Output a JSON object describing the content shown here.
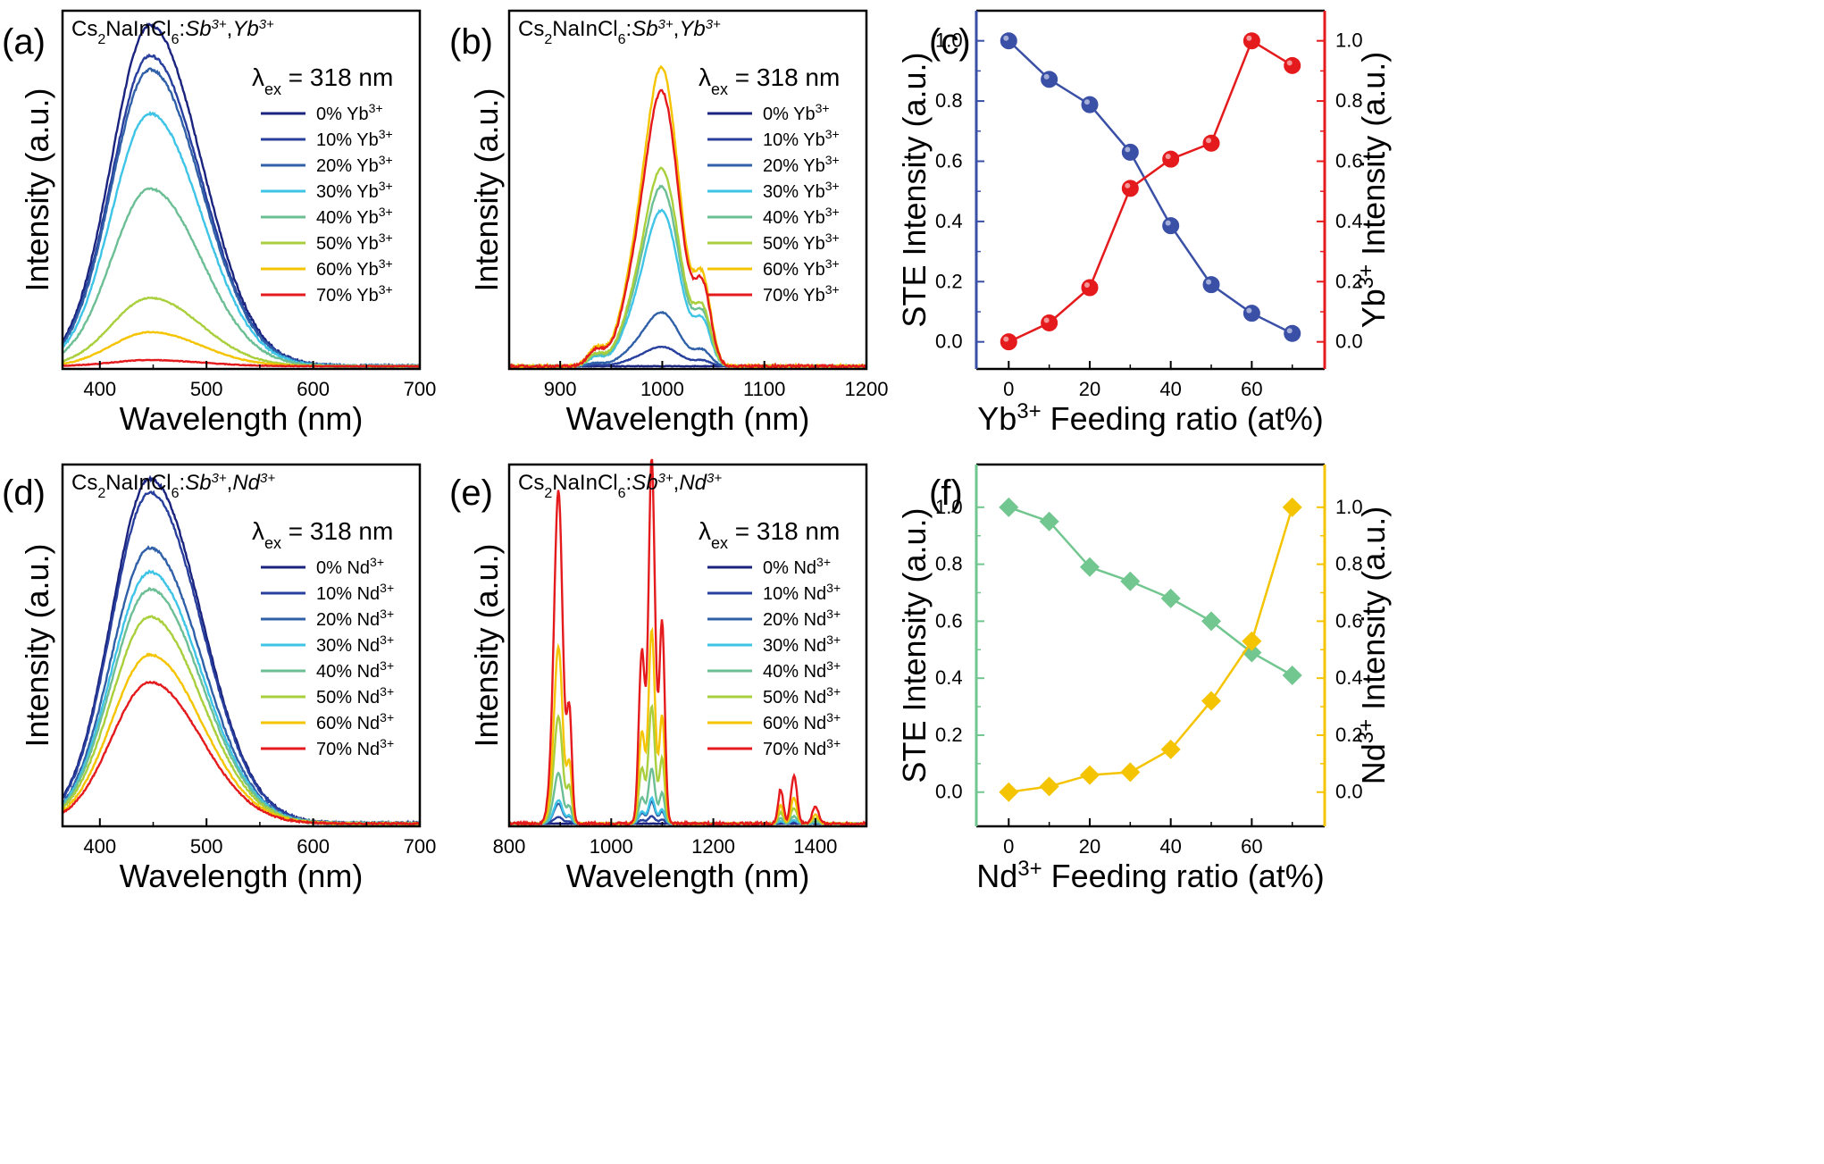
{
  "panels": [
    {
      "letter": "(a)",
      "host": "Cs2NaInCl6:",
      "dopant1": "Sb",
      "dopant2": "Yb",
      "excitation": "318 nm",
      "chart_data": {
        "type": "line",
        "xlabel": "Wavelength (nm)",
        "ylabel": "Intensity (a.u.)",
        "xlim": [
          365,
          700
        ],
        "ylim": [
          0,
          1.05
        ],
        "xticks": [
          400,
          500,
          600,
          700
        ],
        "yticks": [],
        "peak": 447,
        "sigma_left": 36,
        "sigma_right": 48,
        "series": [
          {
            "name": "0% Yb3+",
            "color": "#1a237e",
            "amplitude": 1.0
          },
          {
            "name": "10% Yb3+",
            "color": "#283f9e",
            "amplitude": 0.91
          },
          {
            "name": "20% Yb3+",
            "color": "#3060a8",
            "amplitude": 0.87
          },
          {
            "name": "30% Yb3+",
            "color": "#3ec4e6",
            "amplitude": 0.74
          },
          {
            "name": "40% Yb3+",
            "color": "#6cbf94",
            "amplitude": 0.52
          },
          {
            "name": "50% Yb3+",
            "color": "#a9cf3c",
            "amplitude": 0.2
          },
          {
            "name": "60% Yb3+",
            "color": "#f5c400",
            "amplitude": 0.1
          },
          {
            "name": "70% Yb3+",
            "color": "#e41a1c",
            "amplitude": 0.018
          }
        ]
      }
    },
    {
      "letter": "(b)",
      "host": "Cs2NaInCl6:",
      "dopant1": "Sb",
      "dopant2": "Yb",
      "excitation": "318 nm",
      "chart_data": {
        "type": "line",
        "xlabel": "Wavelength (nm)",
        "ylabel": "Intensity (a.u.)",
        "xlim": [
          850,
          1200
        ],
        "ylim": [
          0,
          1.05
        ],
        "xticks": [
          900,
          1000,
          1100,
          1200
        ],
        "yticks": [],
        "series": [
          {
            "name": "0% Yb3+",
            "color": "#1a237e",
            "amplitude": 0.0
          },
          {
            "name": "10% Yb3+",
            "color": "#283f9e",
            "amplitude": 0.065
          },
          {
            "name": "20% Yb3+",
            "color": "#3060a8",
            "amplitude": 0.18
          },
          {
            "name": "30% Yb3+",
            "color": "#3ec4e6",
            "amplitude": 0.52
          },
          {
            "name": "40% Yb3+",
            "color": "#6cbf94",
            "amplitude": 0.6
          },
          {
            "name": "50% Yb3+",
            "color": "#a9cf3c",
            "amplitude": 0.66
          },
          {
            "name": "60% Yb3+",
            "color": "#f5c400",
            "amplitude": 1.0
          },
          {
            "name": "70% Yb3+",
            "color": "#e41a1c",
            "amplitude": 0.92
          }
        ]
      }
    },
    {
      "letter": "(c)",
      "chart_data": {
        "type": "line",
        "xlabel_pre": "Yb",
        "xlabel_post": " Feeding ratio (at%)",
        "ylabel_left": "STE Intensity (a.u.)",
        "ylabel_right_pre": "Yb",
        "ylabel_right_post": " Intensity (a.u.)",
        "xlim": [
          -8,
          78
        ],
        "ylim": [
          -0.09,
          1.1
        ],
        "xticks": [
          0,
          20,
          40,
          60
        ],
        "yticks": [
          0.0,
          0.2,
          0.4,
          0.6,
          0.8,
          1.0
        ],
        "x": [
          0,
          10,
          20,
          30,
          40,
          50,
          60,
          70
        ],
        "series": [
          {
            "name": "STE",
            "color": "#3a4fa6",
            "marker": "circle",
            "values": [
              1.0,
              0.872,
              0.788,
              0.63,
              0.386,
              0.19,
              0.095,
              0.028
            ]
          },
          {
            "name": "Yb3+",
            "color": "#e41a1c",
            "marker": "circle",
            "values": [
              0.0,
              0.063,
              0.18,
              0.51,
              0.607,
              0.66,
              1.0,
              0.918
            ]
          }
        ]
      }
    },
    {
      "letter": "(d)",
      "host": "Cs2NaInCl6:",
      "dopant1": "Sb",
      "dopant2": "Nd",
      "excitation": "318 nm",
      "chart_data": {
        "type": "line",
        "xlabel": "Wavelength (nm)",
        "ylabel": "Intensity (a.u.)",
        "xlim": [
          365,
          700
        ],
        "ylim": [
          0,
          1.05
        ],
        "xticks": [
          400,
          500,
          600,
          700
        ],
        "yticks": [],
        "peak": 447,
        "sigma_left": 36,
        "sigma_right": 48,
        "series": [
          {
            "name": "0% Nd3+",
            "color": "#1a237e",
            "amplitude": 1.0
          },
          {
            "name": "10% Nd3+",
            "color": "#283f9e",
            "amplitude": 0.96
          },
          {
            "name": "20% Nd3+",
            "color": "#3060a8",
            "amplitude": 0.8
          },
          {
            "name": "30% Nd3+",
            "color": "#3ec4e6",
            "amplitude": 0.73
          },
          {
            "name": "40% Nd3+",
            "color": "#6cbf94",
            "amplitude": 0.68
          },
          {
            "name": "50% Nd3+",
            "color": "#a9cf3c",
            "amplitude": 0.6
          },
          {
            "name": "60% Nd3+",
            "color": "#f5c400",
            "amplitude": 0.49
          },
          {
            "name": "70% Nd3+",
            "color": "#e41a1c",
            "amplitude": 0.41
          }
        ]
      }
    },
    {
      "letter": "(e)",
      "host": "Cs2NaInCl6:",
      "dopant1": "Sb",
      "dopant2": "Nd",
      "excitation": "318 nm",
      "chart_data": {
        "type": "line",
        "xlabel": "Wavelength (nm)",
        "ylabel": "Intensity (a.u.)",
        "xlim": [
          800,
          1500
        ],
        "ylim": [
          0,
          1.05
        ],
        "xticks": [
          800,
          1000,
          1200,
          1400
        ],
        "yticks": [],
        "series": [
          {
            "name": "0% Nd3+",
            "color": "#1a237e",
            "amplitude": 0.0
          },
          {
            "name": "10% Nd3+",
            "color": "#283f9e",
            "amplitude": 0.02
          },
          {
            "name": "20% Nd3+",
            "color": "#3060a8",
            "amplitude": 0.06
          },
          {
            "name": "30% Nd3+",
            "color": "#3ec4e6",
            "amplitude": 0.07
          },
          {
            "name": "40% Nd3+",
            "color": "#6cbf94",
            "amplitude": 0.15
          },
          {
            "name": "50% Nd3+",
            "color": "#a9cf3c",
            "amplitude": 0.32
          },
          {
            "name": "60% Nd3+",
            "color": "#f5c400",
            "amplitude": 0.53
          },
          {
            "name": "70% Nd3+",
            "color": "#e41a1c",
            "amplitude": 1.0
          }
        ]
      }
    },
    {
      "letter": "(f)",
      "chart_data": {
        "type": "line",
        "xlabel_pre": "Nd",
        "xlabel_post": " Feeding ratio (at%)",
        "ylabel_left": "STE Intensity (a.u.)",
        "ylabel_right_pre": "Nd",
        "ylabel_right_post": " Intensity (a.u.)",
        "xlim": [
          -8,
          78
        ],
        "ylim": [
          -0.12,
          1.15
        ],
        "xticks": [
          0,
          20,
          40,
          60
        ],
        "yticks": [
          0.0,
          0.2,
          0.4,
          0.6,
          0.8,
          1.0
        ],
        "x": [
          0,
          10,
          20,
          30,
          40,
          50,
          60,
          70
        ],
        "series": [
          {
            "name": "STE",
            "color": "#72c68f",
            "marker": "diamond",
            "values": [
              1.0,
              0.95,
              0.79,
              0.74,
              0.68,
              0.6,
              0.49,
              0.41
            ]
          },
          {
            "name": "Nd3+",
            "color": "#f5c400",
            "marker": "diamond",
            "values": [
              0.0,
              0.02,
              0.06,
              0.07,
              0.15,
              0.32,
              0.53,
              1.0
            ]
          }
        ]
      }
    }
  ]
}
